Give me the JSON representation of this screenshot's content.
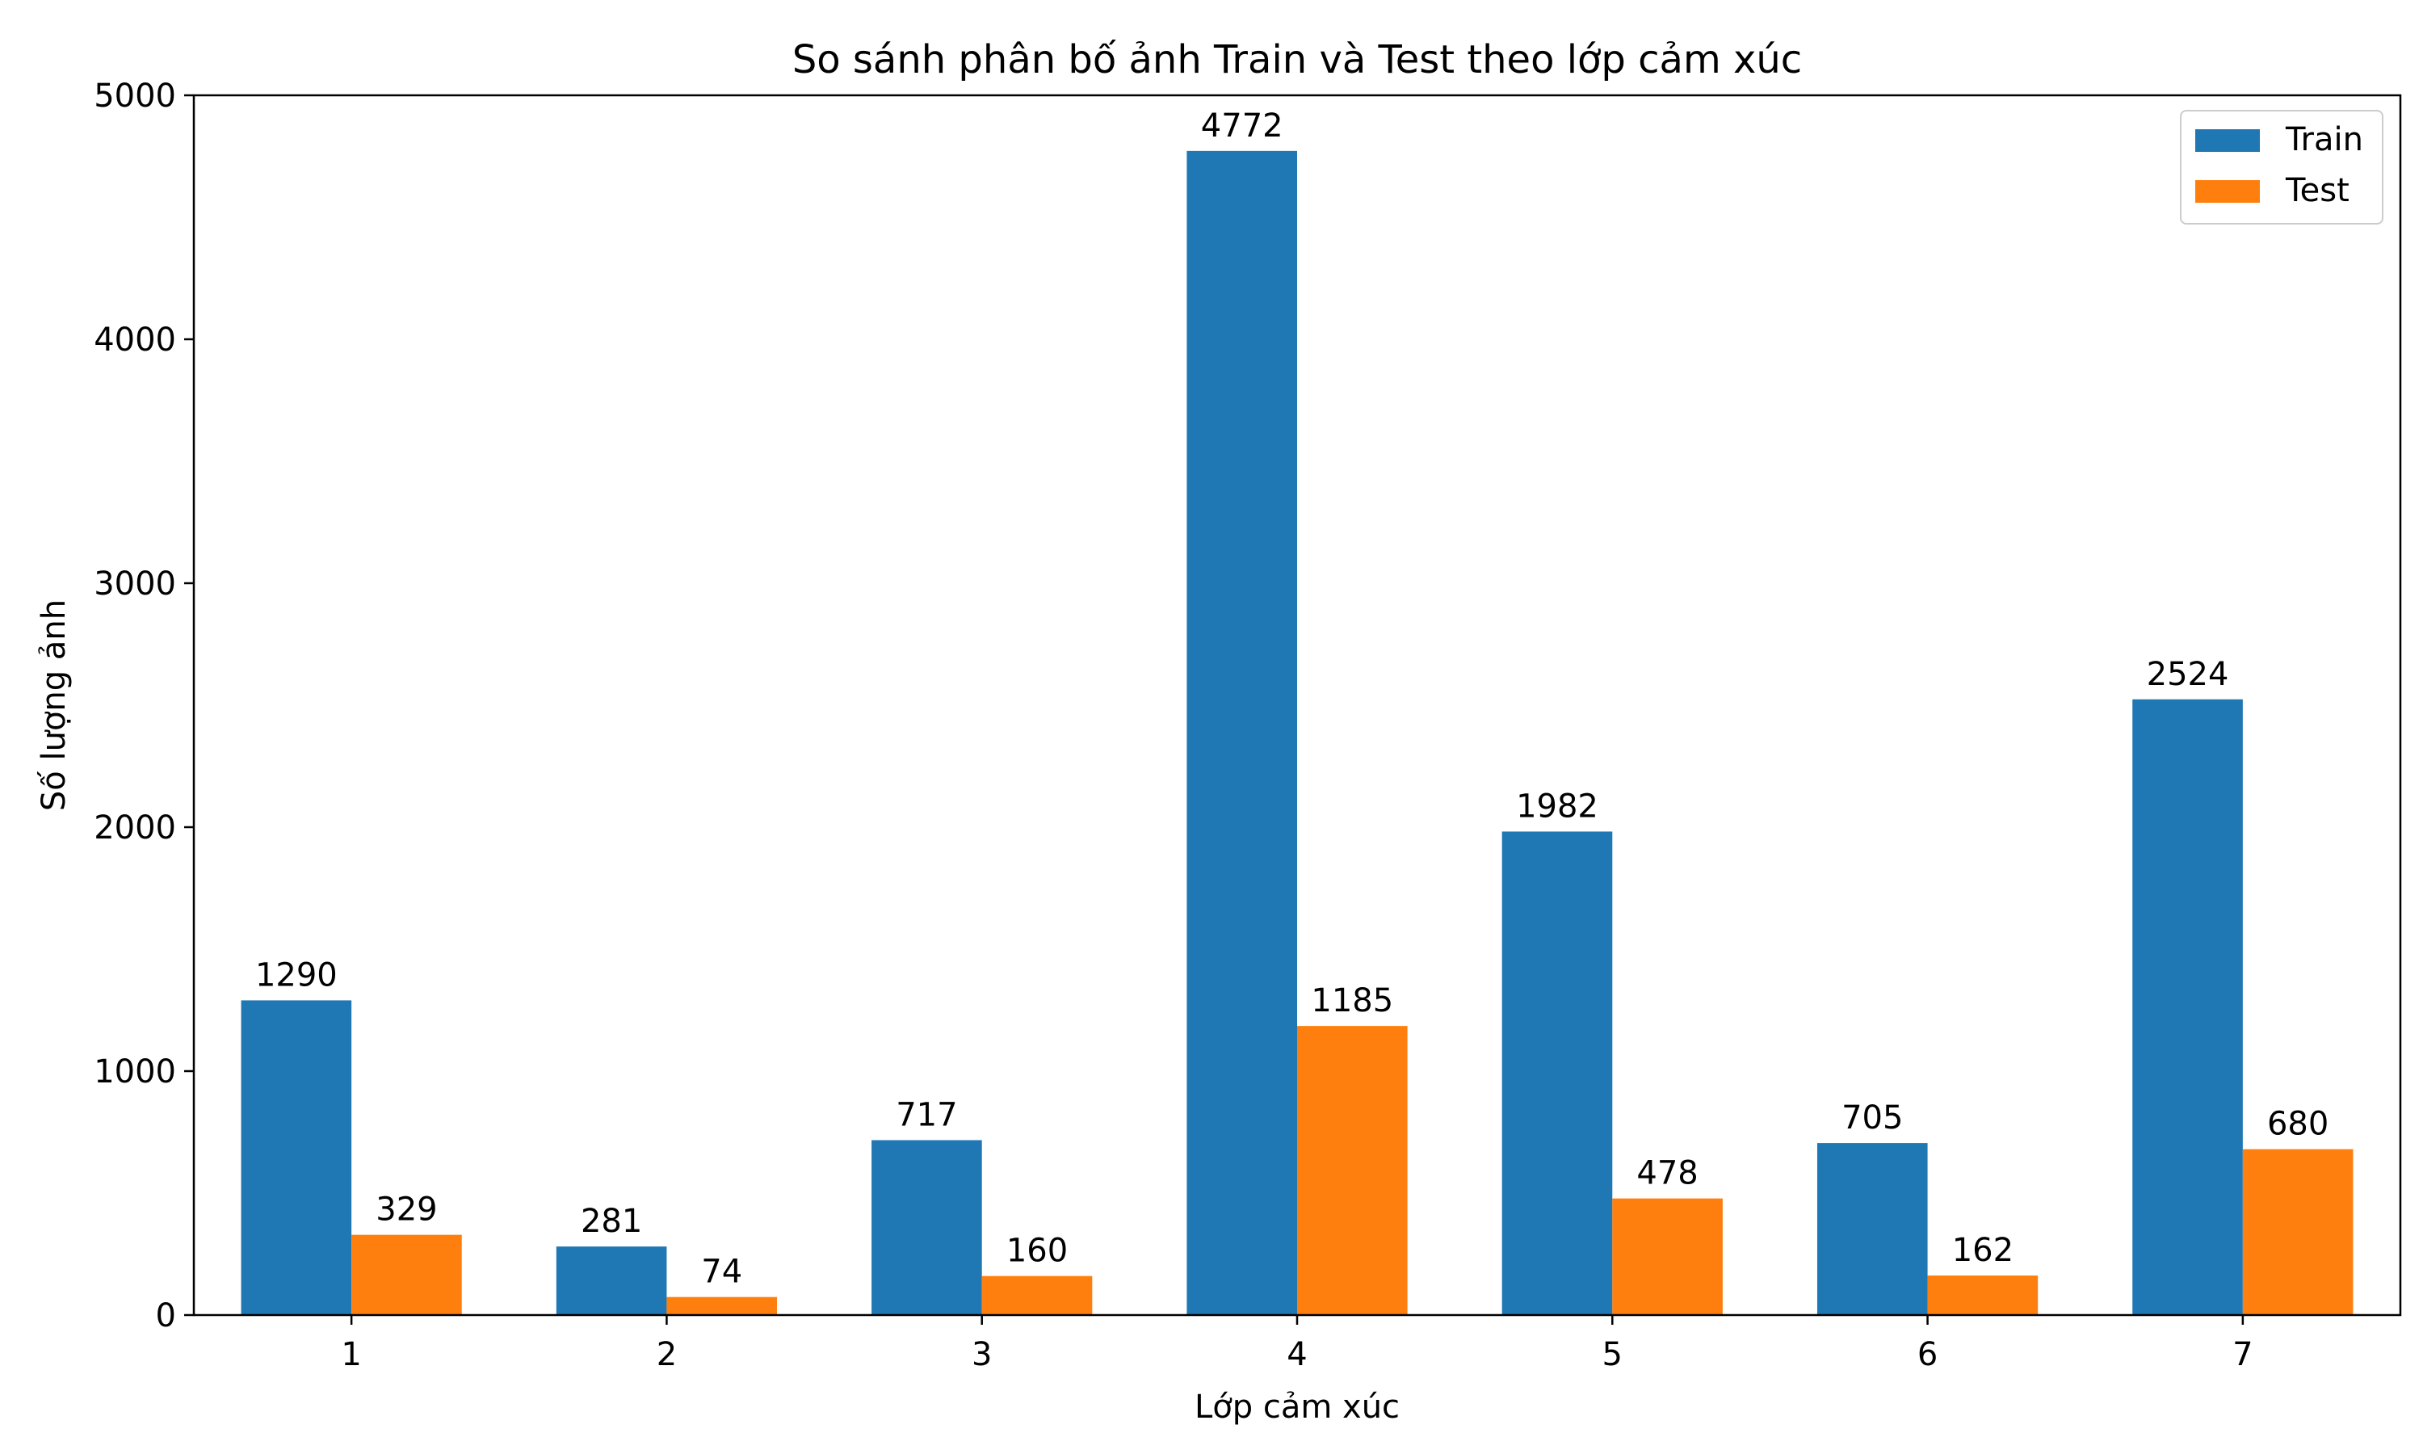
{
  "chart_data": {
    "type": "bar",
    "title": "So sánh phân bố ảnh Train và Test theo lớp cảm xúc",
    "xlabel": "Lớp cảm xúc",
    "ylabel": "Số lượng ảnh",
    "categories": [
      "1",
      "2",
      "3",
      "4",
      "5",
      "6",
      "7"
    ],
    "series": [
      {
        "name": "Train",
        "color": "#1f77b4",
        "values": [
          1290,
          281,
          717,
          4772,
          1982,
          705,
          2524
        ]
      },
      {
        "name": "Test",
        "color": "#ff7f0e",
        "values": [
          329,
          74,
          160,
          1185,
          478,
          162,
          680
        ]
      }
    ],
    "ylim": [
      0,
      5000
    ],
    "yticks": [
      0,
      1000,
      2000,
      3000,
      4000,
      5000
    ],
    "grid": false,
    "legend_position": "top-right"
  }
}
